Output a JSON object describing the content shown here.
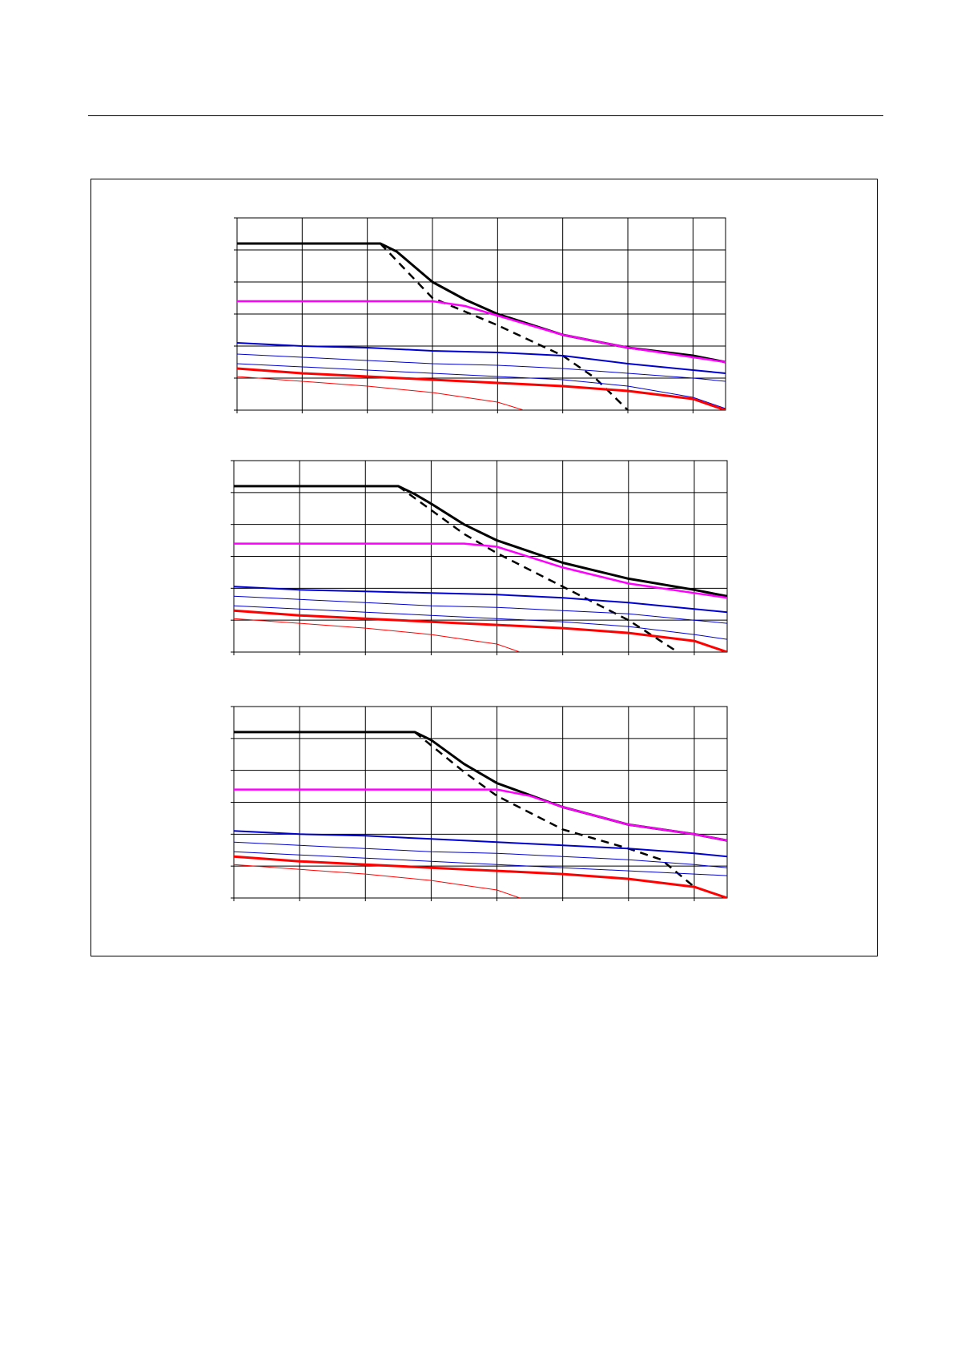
{
  "colors": {
    "black": "#000000",
    "magenta": "#ff00ff",
    "blue": "#0000cc",
    "red": "#ff0000",
    "grid": "#000000"
  },
  "chart_data": [
    {
      "type": "line",
      "x_range": [
        0,
        7.5
      ],
      "y_range": [
        0,
        6
      ],
      "grid": true,
      "series": [
        {
          "color": "black",
          "width": 3,
          "dash": "",
          "x": [
            0,
            2.2,
            2.45,
            3.0,
            3.5,
            4.0,
            5.0,
            6.0,
            7.0,
            7.5
          ],
          "y": [
            5.2,
            5.2,
            4.95,
            4.0,
            3.45,
            3.0,
            2.35,
            1.95,
            1.7,
            1.5
          ]
        },
        {
          "color": "black",
          "width": 2.5,
          "dash": "10,7",
          "x": [
            2.2,
            3.0,
            4.0,
            5.0,
            5.5,
            6.0
          ],
          "y": [
            5.2,
            3.5,
            2.65,
            1.7,
            1.0,
            0
          ]
        },
        {
          "color": "magenta",
          "width": 2.5,
          "dash": "",
          "x": [
            0,
            3.0,
            3.5,
            4.0,
            5.0,
            6.0,
            7.0,
            7.5
          ],
          "y": [
            3.4,
            3.4,
            3.25,
            2.95,
            2.35,
            1.95,
            1.65,
            1.5
          ]
        },
        {
          "color": "blue",
          "width": 2,
          "dash": "",
          "x": [
            0,
            1,
            2,
            3,
            4,
            5,
            6,
            7,
            7.5
          ],
          "y": [
            2.1,
            2.0,
            1.95,
            1.85,
            1.8,
            1.7,
            1.45,
            1.25,
            1.15
          ]
        },
        {
          "color": "blue",
          "width": 1,
          "dash": "",
          "x": [
            0,
            1,
            2,
            3,
            4,
            5,
            6,
            7,
            7.5
          ],
          "y": [
            1.75,
            1.65,
            1.55,
            1.45,
            1.4,
            1.3,
            1.15,
            1.0,
            0.9
          ]
        },
        {
          "color": "blue",
          "width": 1,
          "dash": "",
          "x": [
            0,
            1,
            2,
            3,
            4,
            5,
            6,
            7,
            7.5
          ],
          "y": [
            1.45,
            1.35,
            1.25,
            1.15,
            1.05,
            0.95,
            0.75,
            0.4,
            0.05
          ]
        },
        {
          "color": "red",
          "width": 3,
          "dash": "",
          "x": [
            0,
            1,
            2,
            3,
            4,
            5,
            6,
            7,
            7.5
          ],
          "y": [
            1.3,
            1.15,
            1.05,
            0.95,
            0.85,
            0.75,
            0.6,
            0.35,
            0
          ]
        },
        {
          "color": "red",
          "width": 1,
          "dash": "",
          "x": [
            0,
            1,
            2,
            3,
            3.5,
            4.0,
            4.4
          ],
          "y": [
            1.05,
            0.9,
            0.75,
            0.55,
            0.4,
            0.25,
            0
          ]
        }
      ]
    },
    {
      "type": "line",
      "x_range": [
        0,
        7.5
      ],
      "y_range": [
        0,
        6
      ],
      "grid": true,
      "series": [
        {
          "color": "black",
          "width": 3,
          "dash": "",
          "x": [
            0,
            2.5,
            2.75,
            3.0,
            3.5,
            4.0,
            5.0,
            6.0,
            7.0,
            7.5
          ],
          "y": [
            5.2,
            5.2,
            4.95,
            4.65,
            4.0,
            3.5,
            2.8,
            2.3,
            1.95,
            1.75
          ]
        },
        {
          "color": "black",
          "width": 2.5,
          "dash": "10,7",
          "x": [
            2.5,
            3.0,
            3.5,
            4.0,
            5.0,
            6.0,
            6.75
          ],
          "y": [
            5.2,
            4.45,
            3.7,
            3.1,
            2.05,
            1.0,
            0
          ]
        },
        {
          "color": "magenta",
          "width": 2.5,
          "dash": "",
          "x": [
            0,
            3.5,
            4.0,
            5.0,
            6.0,
            7.0,
            7.5
          ],
          "y": [
            3.4,
            3.4,
            3.3,
            2.65,
            2.15,
            1.85,
            1.7
          ]
        },
        {
          "color": "blue",
          "width": 2,
          "dash": "",
          "x": [
            0,
            1,
            2,
            3,
            4,
            5,
            6,
            7,
            7.5
          ],
          "y": [
            2.05,
            1.95,
            1.9,
            1.85,
            1.8,
            1.7,
            1.55,
            1.35,
            1.25
          ]
        },
        {
          "color": "blue",
          "width": 1,
          "dash": "",
          "x": [
            0,
            1,
            2,
            3,
            4,
            5,
            6,
            7,
            7.5
          ],
          "y": [
            1.75,
            1.65,
            1.55,
            1.45,
            1.4,
            1.3,
            1.2,
            1.0,
            0.9
          ]
        },
        {
          "color": "blue",
          "width": 1,
          "dash": "",
          "x": [
            0,
            1,
            2,
            3,
            4,
            5,
            6,
            7,
            7.5
          ],
          "y": [
            1.45,
            1.35,
            1.25,
            1.15,
            1.05,
            0.95,
            0.8,
            0.55,
            0.4
          ]
        },
        {
          "color": "red",
          "width": 3,
          "dash": "",
          "x": [
            0,
            1,
            2,
            3,
            4,
            5,
            6,
            7,
            7.5
          ],
          "y": [
            1.3,
            1.15,
            1.05,
            0.95,
            0.85,
            0.75,
            0.6,
            0.35,
            0
          ]
        },
        {
          "color": "red",
          "width": 1,
          "dash": "",
          "x": [
            0,
            1,
            2,
            3,
            3.5,
            4.0,
            4.35
          ],
          "y": [
            1.05,
            0.9,
            0.75,
            0.55,
            0.4,
            0.25,
            0
          ]
        }
      ]
    },
    {
      "type": "line",
      "x_range": [
        0,
        7.5
      ],
      "y_range": [
        0,
        6
      ],
      "grid": true,
      "series": [
        {
          "color": "black",
          "width": 3,
          "dash": "",
          "x": [
            0,
            2.75,
            3.0,
            3.5,
            4.0,
            5.0,
            6.0,
            7.0,
            7.5
          ],
          "y": [
            5.2,
            5.2,
            4.95,
            4.2,
            3.6,
            2.85,
            2.3,
            2.0,
            1.8
          ]
        },
        {
          "color": "black",
          "width": 2.5,
          "dash": "10,7",
          "x": [
            2.75,
            3.5,
            4.0,
            5.0,
            6.0,
            6.5,
            7.0
          ],
          "y": [
            5.2,
            3.95,
            3.2,
            2.15,
            1.55,
            1.2,
            0.35
          ]
        },
        {
          "color": "magenta",
          "width": 2.5,
          "dash": "",
          "x": [
            0,
            4.0,
            4.5,
            5.0,
            6.0,
            7.0,
            7.5
          ],
          "y": [
            3.4,
            3.4,
            3.2,
            2.85,
            2.3,
            2.0,
            1.8
          ]
        },
        {
          "color": "blue",
          "width": 2,
          "dash": "",
          "x": [
            0,
            1,
            2,
            3,
            4,
            5,
            6,
            7,
            7.5
          ],
          "y": [
            2.1,
            2.0,
            1.95,
            1.85,
            1.75,
            1.65,
            1.55,
            1.4,
            1.3
          ]
        },
        {
          "color": "blue",
          "width": 1,
          "dash": "",
          "x": [
            0,
            1,
            2,
            3,
            4,
            5,
            6,
            7,
            7.5
          ],
          "y": [
            1.75,
            1.65,
            1.55,
            1.45,
            1.4,
            1.3,
            1.2,
            1.05,
            0.95
          ]
        },
        {
          "color": "blue",
          "width": 1,
          "dash": "",
          "x": [
            0,
            1,
            2,
            3,
            4,
            5,
            6,
            7,
            7.5
          ],
          "y": [
            1.45,
            1.35,
            1.25,
            1.15,
            1.05,
            0.95,
            0.85,
            0.75,
            0.7
          ]
        },
        {
          "color": "red",
          "width": 3,
          "dash": "",
          "x": [
            0,
            1,
            2,
            3,
            4,
            5,
            6,
            7,
            7.5
          ],
          "y": [
            1.3,
            1.15,
            1.05,
            0.95,
            0.85,
            0.75,
            0.6,
            0.35,
            0
          ]
        },
        {
          "color": "red",
          "width": 1,
          "dash": "",
          "x": [
            0,
            1,
            2,
            3,
            3.5,
            4.0,
            4.35
          ],
          "y": [
            1.05,
            0.9,
            0.75,
            0.55,
            0.4,
            0.25,
            0
          ]
        }
      ]
    }
  ]
}
